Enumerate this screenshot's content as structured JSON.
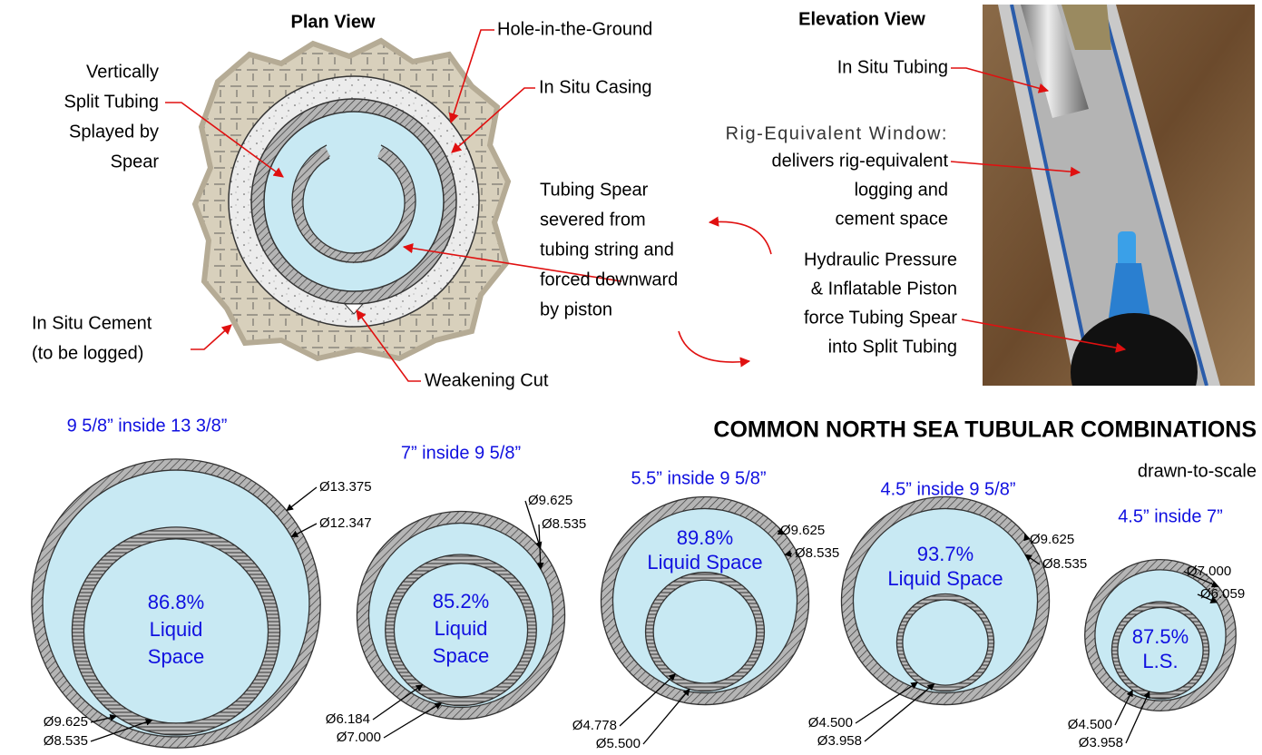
{
  "plan_view": {
    "title": "Plan View",
    "hole": "Hole-in-the-Ground",
    "casing": "In Situ Casing",
    "split_tubing": [
      "Vertically",
      "Split Tubing",
      "Splayed by",
      "Spear"
    ],
    "spear": [
      "Tubing Spear",
      "severed from",
      "tubing string and",
      "forced downward",
      "by piston"
    ],
    "cement": [
      "In Situ Cement",
      "(to be logged)"
    ],
    "cut": "Weakening Cut"
  },
  "elevation_view": {
    "title": "Elevation View",
    "tubing": "In Situ Tubing",
    "window_title": "Rig-Equivalent Window:",
    "window_text": [
      "delivers rig-equivalent",
      "logging and",
      "cement space"
    ],
    "piston": [
      "Hydraulic Pressure",
      "& Inflatable Piston",
      "force Tubing Spear",
      "into Split Tubing"
    ]
  },
  "combinations": {
    "title": "COMMON NORTH SEA TUBULAR COMBINATIONS",
    "subtitle": "drawn-to-scale",
    "items": [
      {
        "label": "9 5/8” inside 13 3/8”",
        "casing": [
          "Ø13.375",
          "Ø12.347"
        ],
        "tubing": [
          "Ø9.625",
          "Ø8.535"
        ],
        "liquid_space": [
          "86.8%",
          "Liquid",
          "Space"
        ]
      },
      {
        "label": "7” inside 9 5/8”",
        "casing": [
          "Ø9.625",
          "Ø8.535"
        ],
        "tubing": [
          "Ø6.184",
          "Ø7.000"
        ],
        "liquid_space": [
          "85.2%",
          "Liquid",
          "Space"
        ]
      },
      {
        "label": "5.5” inside 9 5/8”",
        "casing": [
          "Ø9.625",
          "Ø8.535"
        ],
        "tubing": [
          "Ø4.778",
          "Ø5.500"
        ],
        "liquid_space": [
          "89.8%",
          "Liquid Space"
        ]
      },
      {
        "label": "4.5” inside 9 5/8”",
        "casing": [
          "Ø9.625",
          "Ø8.535"
        ],
        "tubing": [
          "Ø4.500",
          "Ø3.958"
        ],
        "liquid_space": [
          "93.7%",
          "Liquid Space"
        ]
      },
      {
        "label": "4.5” inside 7”",
        "casing": [
          "Ø7.000",
          "Ø6.059"
        ],
        "tubing": [
          "Ø4.500",
          "Ø3.958"
        ],
        "liquid_space": [
          "87.5%",
          "L.S."
        ]
      }
    ]
  }
}
